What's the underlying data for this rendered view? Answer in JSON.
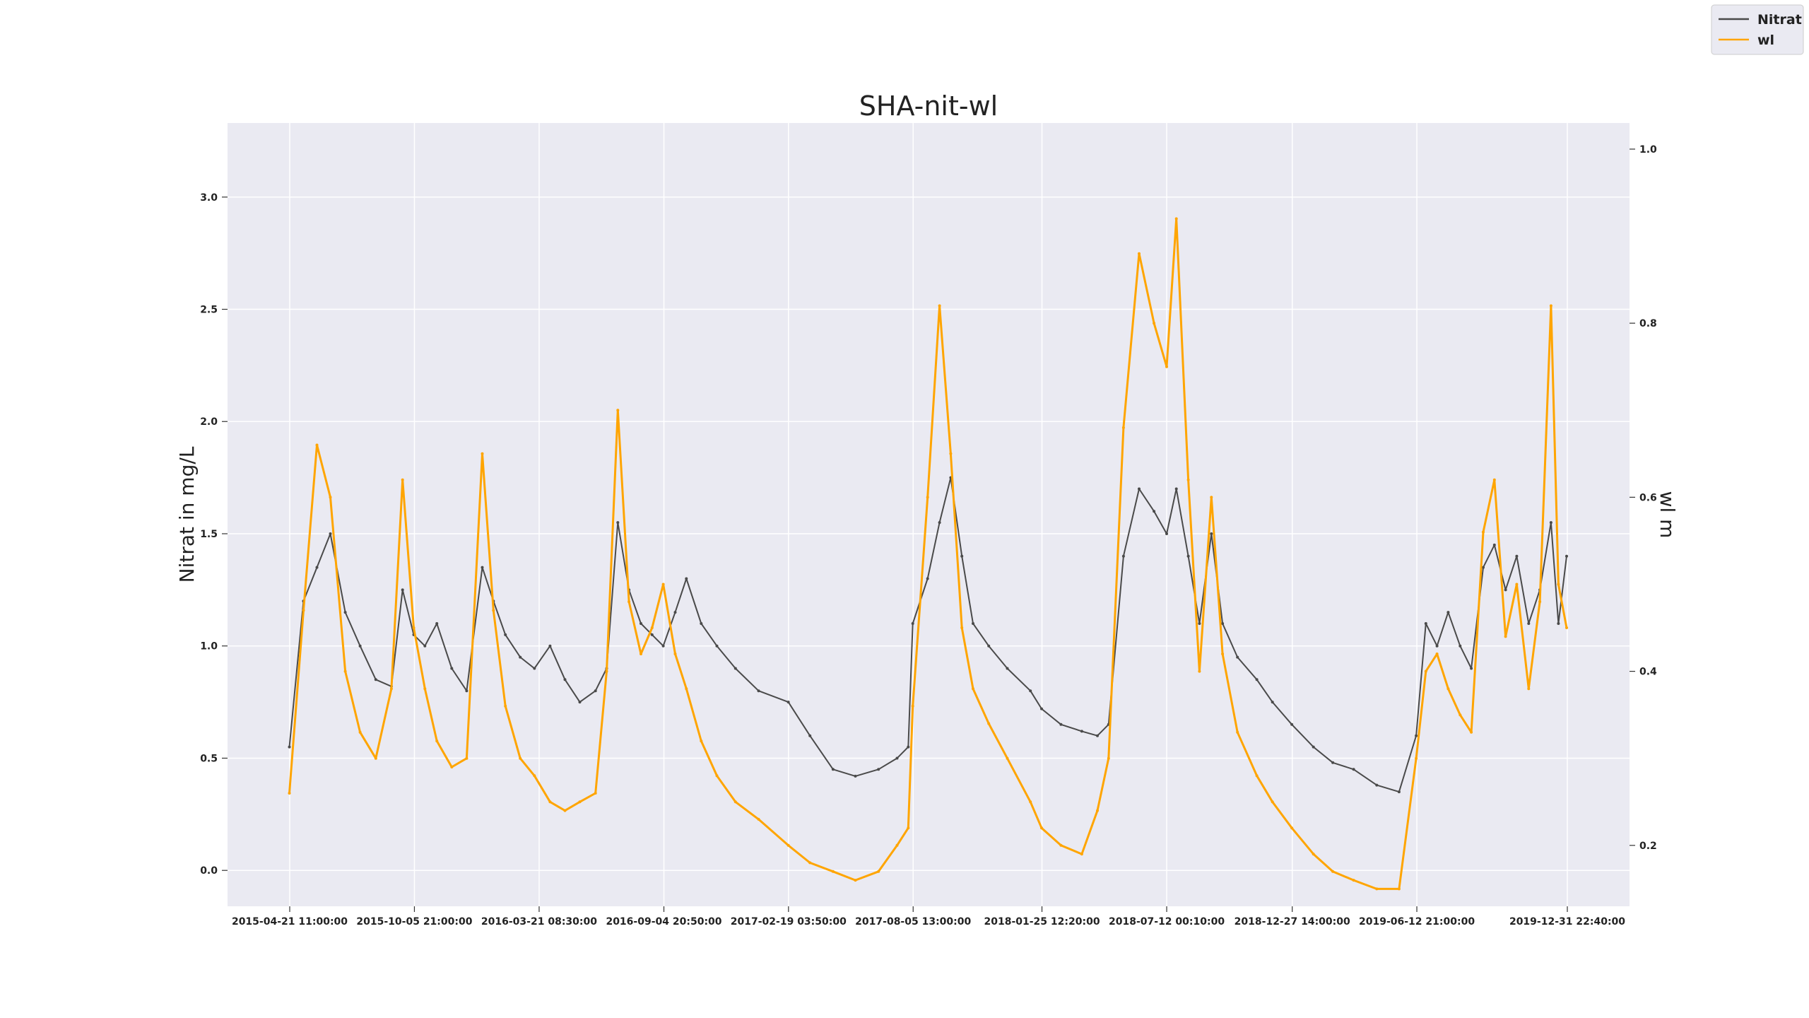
{
  "chart_data": {
    "type": "line",
    "title": "SHA-nit-wl",
    "ylabel_left": "Nitrat in mg/L",
    "ylabel_right": "wl m",
    "xlabel": "",
    "x_tick_labels": [
      "2015-04-21 11:00:00",
      "2015-10-05 21:00:00",
      "2016-03-21 08:30:00",
      "2016-09-04 20:50:00",
      "2017-02-19 03:50:00",
      "2017-08-05 13:00:00",
      "2018-01-25 12:20:00",
      "2018-07-12 00:10:00",
      "2018-12-27 14:00:00",
      "2019-06-12 21:00:00",
      "2019-12-31 22:40:00"
    ],
    "y_left_ticks": [
      0.0,
      0.5,
      1.0,
      1.5,
      2.0,
      2.5,
      3.0
    ],
    "y_left_tick_labels": [
      "0.0",
      "0.5",
      "1.0",
      "1.5",
      "2.0",
      "2.5",
      "3.0"
    ],
    "y_right_ticks": [
      0.2,
      0.4,
      0.6,
      0.8,
      1.0
    ],
    "y_right_tick_labels": [
      "0.2",
      "0.4",
      "0.6",
      "0.8",
      "1.0"
    ],
    "ylim_left": [
      -0.16,
      3.33
    ],
    "ylim_right": [
      0.13,
      1.03
    ],
    "grid": true,
    "legend_position": "top-right",
    "background": "#eaeaf2",
    "series": [
      {
        "name": "Nitrat",
        "axis": "left",
        "color": "#4a4a4a",
        "x": [
          "2015-04-21",
          "2015-05-10",
          "2015-05-28",
          "2015-06-15",
          "2015-07-05",
          "2015-07-25",
          "2015-08-15",
          "2015-09-05",
          "2015-09-20",
          "2015-10-05",
          "2015-10-20",
          "2015-11-05",
          "2015-11-25",
          "2015-12-15",
          "2016-01-05",
          "2016-01-20",
          "2016-02-05",
          "2016-02-25",
          "2016-03-15",
          "2016-04-05",
          "2016-04-25",
          "2016-05-15",
          "2016-06-05",
          "2016-06-20",
          "2016-07-05",
          "2016-07-20",
          "2016-08-05",
          "2016-08-20",
          "2016-09-04",
          "2016-09-20",
          "2016-10-05",
          "2016-10-25",
          "2016-11-15",
          "2016-12-10",
          "2017-01-10",
          "2017-02-19",
          "2017-03-20",
          "2017-04-20",
          "2017-05-20",
          "2017-06-20",
          "2017-07-15",
          "2017-07-30",
          "2017-08-05",
          "2017-08-25",
          "2017-09-10",
          "2017-09-25",
          "2017-10-10",
          "2017-10-25",
          "2017-11-15",
          "2017-12-10",
          "2018-01-10",
          "2018-01-25",
          "2018-02-20",
          "2018-03-20",
          "2018-04-10",
          "2018-04-25",
          "2018-05-15",
          "2018-06-05",
          "2018-06-25",
          "2018-07-12",
          "2018-07-25",
          "2018-08-10",
          "2018-08-25",
          "2018-09-10",
          "2018-09-25",
          "2018-10-15",
          "2018-11-10",
          "2018-12-01",
          "2018-12-27",
          "2019-01-25",
          "2019-02-20",
          "2019-03-20",
          "2019-04-20",
          "2019-05-20",
          "2019-06-12",
          "2019-06-25",
          "2019-07-10",
          "2019-07-25",
          "2019-08-10",
          "2019-08-25",
          "2019-09-10",
          "2019-09-25",
          "2019-10-10",
          "2019-10-25",
          "2019-11-10",
          "2019-11-25",
          "2019-12-10",
          "2019-12-20",
          "2019-12-31"
        ],
        "y": [
          0.55,
          1.2,
          1.35,
          1.5,
          1.15,
          1.0,
          0.85,
          0.82,
          1.25,
          1.05,
          1.0,
          1.1,
          0.9,
          0.8,
          1.35,
          1.2,
          1.05,
          0.95,
          0.9,
          1.0,
          0.85,
          0.75,
          0.8,
          0.9,
          1.55,
          1.25,
          1.1,
          1.05,
          1.0,
          1.15,
          1.3,
          1.1,
          1.0,
          0.9,
          0.8,
          0.75,
          0.6,
          0.45,
          0.42,
          0.45,
          0.5,
          0.55,
          1.1,
          1.3,
          1.55,
          1.75,
          1.4,
          1.1,
          1.0,
          0.9,
          0.8,
          0.72,
          0.65,
          0.62,
          0.6,
          0.65,
          1.4,
          1.7,
          1.6,
          1.5,
          1.7,
          1.4,
          1.1,
          1.5,
          1.1,
          0.95,
          0.85,
          0.75,
          0.65,
          0.55,
          0.48,
          0.45,
          0.38,
          0.35,
          0.6,
          1.1,
          1.0,
          1.15,
          1.0,
          0.9,
          1.35,
          1.45,
          1.25,
          1.4,
          1.1,
          1.25,
          1.55,
          1.1,
          1.4
        ]
      },
      {
        "name": "wl",
        "axis": "right",
        "color": "#ffa500",
        "x": [
          "2015-04-21",
          "2015-05-10",
          "2015-05-28",
          "2015-06-15",
          "2015-07-05",
          "2015-07-25",
          "2015-08-15",
          "2015-09-05",
          "2015-09-20",
          "2015-10-05",
          "2015-10-20",
          "2015-11-05",
          "2015-11-25",
          "2015-12-15",
          "2016-01-05",
          "2016-01-20",
          "2016-02-05",
          "2016-02-25",
          "2016-03-15",
          "2016-04-05",
          "2016-04-25",
          "2016-05-15",
          "2016-06-05",
          "2016-06-20",
          "2016-07-05",
          "2016-07-20",
          "2016-08-05",
          "2016-08-20",
          "2016-09-04",
          "2016-09-20",
          "2016-10-05",
          "2016-10-25",
          "2016-11-15",
          "2016-12-10",
          "2017-01-10",
          "2017-02-19",
          "2017-03-20",
          "2017-04-20",
          "2017-05-20",
          "2017-06-20",
          "2017-07-15",
          "2017-07-30",
          "2017-08-05",
          "2017-08-25",
          "2017-09-10",
          "2017-09-25",
          "2017-10-10",
          "2017-10-25",
          "2017-11-15",
          "2017-12-10",
          "2018-01-10",
          "2018-01-25",
          "2018-02-20",
          "2018-03-20",
          "2018-04-10",
          "2018-04-25",
          "2018-05-15",
          "2018-06-05",
          "2018-06-25",
          "2018-07-12",
          "2018-07-25",
          "2018-08-10",
          "2018-08-25",
          "2018-09-10",
          "2018-09-25",
          "2018-10-15",
          "2018-11-10",
          "2018-12-01",
          "2018-12-27",
          "2019-01-25",
          "2019-02-20",
          "2019-03-20",
          "2019-04-20",
          "2019-05-20",
          "2019-06-12",
          "2019-06-25",
          "2019-07-10",
          "2019-07-25",
          "2019-08-10",
          "2019-08-25",
          "2019-09-10",
          "2019-09-25",
          "2019-10-10",
          "2019-10-25",
          "2019-11-10",
          "2019-11-25",
          "2019-12-10",
          "2019-12-20",
          "2019-12-31"
        ],
        "y": [
          0.26,
          0.47,
          0.66,
          0.6,
          0.4,
          0.33,
          0.3,
          0.38,
          0.62,
          0.45,
          0.38,
          0.32,
          0.29,
          0.3,
          0.65,
          0.47,
          0.36,
          0.3,
          0.28,
          0.25,
          0.24,
          0.25,
          0.26,
          0.4,
          0.7,
          0.48,
          0.42,
          0.45,
          0.5,
          0.42,
          0.38,
          0.32,
          0.28,
          0.25,
          0.23,
          0.2,
          0.18,
          0.17,
          0.16,
          0.17,
          0.2,
          0.22,
          0.36,
          0.6,
          0.82,
          0.65,
          0.45,
          0.38,
          0.34,
          0.3,
          0.25,
          0.22,
          0.2,
          0.19,
          0.24,
          0.3,
          0.68,
          0.88,
          0.8,
          0.75,
          0.92,
          0.62,
          0.4,
          0.6,
          0.42,
          0.33,
          0.28,
          0.25,
          0.22,
          0.19,
          0.17,
          0.16,
          0.15,
          0.15,
          0.3,
          0.4,
          0.42,
          0.38,
          0.35,
          0.33,
          0.56,
          0.62,
          0.44,
          0.5,
          0.38,
          0.48,
          0.82,
          0.5,
          0.45
        ]
      }
    ]
  }
}
